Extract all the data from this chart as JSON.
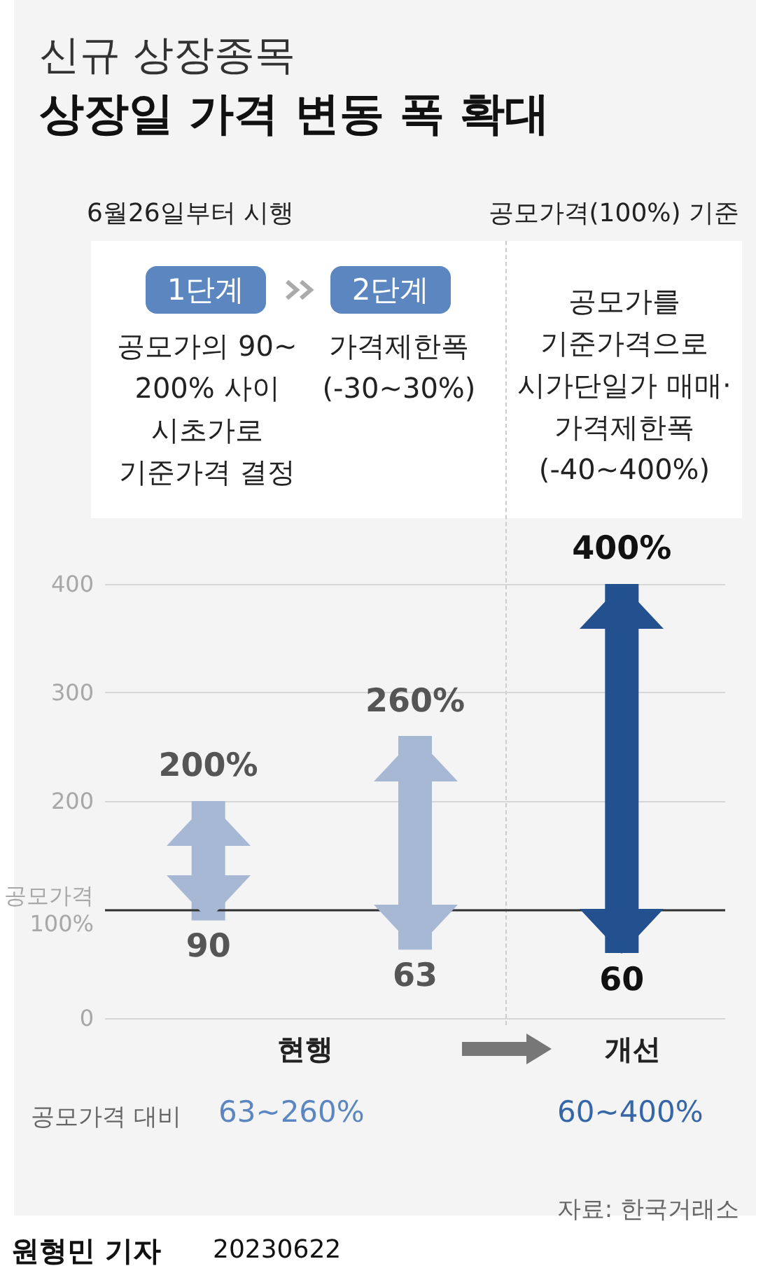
{
  "chart_data": {
    "type": "bar",
    "title": "상장일 가격 변동 폭 확대",
    "subtitle": "신규 상장종목",
    "categories": [
      null,
      null,
      null
    ],
    "base": [
      90,
      63,
      60
    ],
    "values": [
      110,
      197,
      340
    ],
    "colors": [
      "#a7b8d5",
      "#a7b8d5",
      "#23518f"
    ],
    "value_labels": [
      "200%",
      "260%",
      "400%"
    ],
    "ylim": [
      0,
      400
    ],
    "yticks": [
      0,
      {
        "value": 100,
        "label": "공모가격\n100%"
      },
      200,
      300,
      400
    ],
    "grid": "y",
    "ref_lines": [
      {
        "axis": "y",
        "value": 100,
        "color": "#333333"
      }
    ],
    "annotations": [
      "6월26일부터 시행",
      "공모가격(100%) 기준",
      "1단계",
      "2단계",
      "공모가의 90~\n200% 사이\n시초가로\n기준가격 결정",
      "가격제한폭\n(-30~30%)",
      "공모가를\n기준가격으로\n시가단일가 매매·\n가격제한폭\n(-40~400%)",
      {
        "text": "90",
        "y": 90
      },
      {
        "text": "63",
        "y": 63
      },
      {
        "text": "60",
        "y": 60
      },
      "현행",
      "개선",
      "공모가격 대비",
      "63~260%",
      "60~400%",
      "자료: 한국거래소",
      "원형민 기자",
      "20230622"
    ]
  }
}
